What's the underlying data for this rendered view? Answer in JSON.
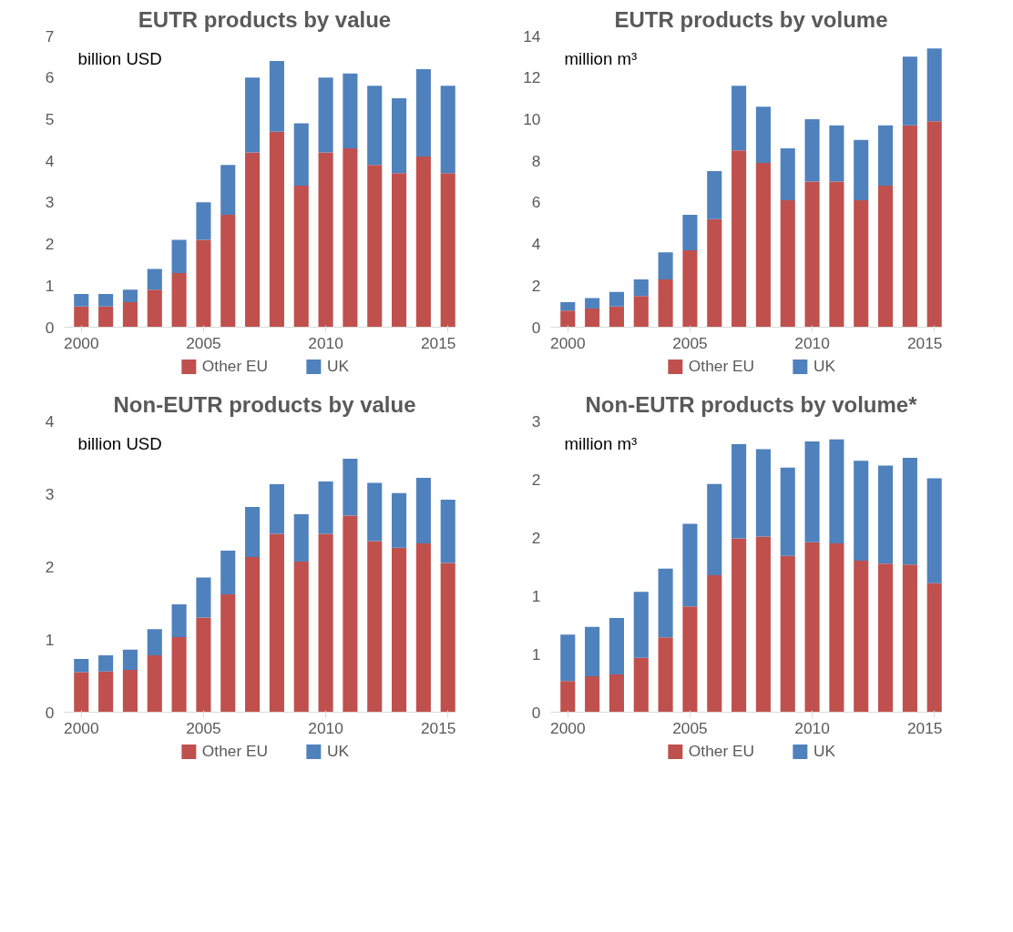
{
  "chart_data": [
    {
      "type": "bar",
      "stacked": true,
      "title": "EUTR products by value",
      "annotations": [
        "billion USD"
      ],
      "x": [
        2000,
        2001,
        2002,
        2003,
        2004,
        2005,
        2006,
        2007,
        2008,
        2009,
        2010,
        2011,
        2012,
        2013,
        2014,
        2015
      ],
      "xlim": [
        1999.3,
        2015.7
      ],
      "xticks": [
        2000,
        2005,
        2010,
        2015
      ],
      "ylim": [
        0,
        7
      ],
      "yticks": [
        0,
        1,
        2,
        3,
        4,
        5,
        6,
        7
      ],
      "grid": false,
      "legend": "bottom",
      "series": [
        {
          "name": "Other EU",
          "color": "#c0504d",
          "values": [
            0.5,
            0.5,
            0.6,
            0.9,
            1.3,
            2.1,
            2.7,
            4.2,
            4.7,
            3.4,
            4.2,
            4.3,
            3.9,
            3.7,
            4.1,
            3.7
          ]
        },
        {
          "name": "UK",
          "color": "#4f81bd",
          "values": [
            0.3,
            0.3,
            0.3,
            0.5,
            0.8,
            0.9,
            1.2,
            1.8,
            1.7,
            1.5,
            1.8,
            1.8,
            1.9,
            1.8,
            2.1,
            2.1
          ]
        }
      ]
    },
    {
      "type": "bar",
      "stacked": true,
      "title": "EUTR products by volume",
      "annotations": [
        "million m³"
      ],
      "x": [
        2000,
        2001,
        2002,
        2003,
        2004,
        2005,
        2006,
        2007,
        2008,
        2009,
        2010,
        2011,
        2012,
        2013,
        2014,
        2015
      ],
      "xlim": [
        1999.3,
        2015.7
      ],
      "xticks": [
        2000,
        2005,
        2010,
        2015
      ],
      "ylim": [
        0,
        14
      ],
      "yticks": [
        0,
        2,
        4,
        6,
        8,
        10,
        12,
        14
      ],
      "grid": false,
      "legend": "bottom",
      "series": [
        {
          "name": "Other EU",
          "color": "#c0504d",
          "values": [
            0.8,
            0.9,
            1.0,
            1.5,
            2.3,
            3.7,
            5.2,
            8.5,
            7.9,
            6.1,
            7.0,
            7.0,
            6.1,
            6.8,
            9.7,
            9.9
          ]
        },
        {
          "name": "UK",
          "color": "#4f81bd",
          "values": [
            0.4,
            0.5,
            0.7,
            0.8,
            1.3,
            1.7,
            2.3,
            3.1,
            2.7,
            2.5,
            3.0,
            2.7,
            2.9,
            2.9,
            3.3,
            3.5
          ]
        }
      ]
    },
    {
      "type": "bar",
      "stacked": true,
      "title": "Non-EUTR products by value",
      "annotations": [
        "billion USD"
      ],
      "x": [
        2000,
        2001,
        2002,
        2003,
        2004,
        2005,
        2006,
        2007,
        2008,
        2009,
        2010,
        2011,
        2012,
        2013,
        2014,
        2015
      ],
      "xlim": [
        1999.3,
        2015.7
      ],
      "xticks": [
        2000,
        2005,
        2010,
        2015
      ],
      "ylim": [
        0,
        4
      ],
      "yticks": [
        0,
        1,
        2,
        3,
        4
      ],
      "grid": false,
      "legend": "bottom",
      "series": [
        {
          "name": "Other EU",
          "color": "#c0504d",
          "values": [
            0.55,
            0.56,
            0.58,
            0.78,
            1.03,
            1.3,
            1.62,
            2.13,
            2.45,
            2.07,
            2.45,
            2.7,
            2.35,
            2.26,
            2.32,
            2.05
          ]
        },
        {
          "name": "UK",
          "color": "#4f81bd",
          "values": [
            0.18,
            0.22,
            0.28,
            0.36,
            0.45,
            0.55,
            0.6,
            0.69,
            0.68,
            0.65,
            0.72,
            0.78,
            0.8,
            0.75,
            0.9,
            0.87
          ]
        }
      ]
    },
    {
      "type": "bar",
      "stacked": true,
      "title": "Non-EUTR products by volume*",
      "annotations": [
        "million m³"
      ],
      "x": [
        2000,
        2001,
        2002,
        2003,
        2004,
        2005,
        2006,
        2007,
        2008,
        2009,
        2010,
        2011,
        2012,
        2013,
        2014,
        2015
      ],
      "xlim": [
        1999.3,
        2015.7
      ],
      "xticks": [
        2000,
        2005,
        2010,
        2015
      ],
      "ylim": [
        0,
        3
      ],
      "yticks": [
        0,
        {
          "value": 0.6,
          "label": "1"
        },
        {
          "value": 1.2,
          "label": "1"
        },
        {
          "value": 1.8,
          "label": "2"
        },
        {
          "value": 2.4,
          "label": "2"
        },
        3
      ],
      "grid": false,
      "legend": "bottom",
      "series": [
        {
          "name": "Other EU",
          "color": "#c0504d",
          "values": [
            0.32,
            0.37,
            0.39,
            0.56,
            0.77,
            1.09,
            1.41,
            1.79,
            1.81,
            1.61,
            1.75,
            1.74,
            1.56,
            1.53,
            1.52,
            1.33
          ]
        },
        {
          "name": "UK",
          "color": "#4f81bd",
          "values": [
            0.48,
            0.51,
            0.58,
            0.68,
            0.71,
            0.85,
            0.94,
            0.97,
            0.9,
            0.91,
            1.04,
            1.07,
            1.03,
            1.01,
            1.1,
            1.08
          ]
        }
      ]
    }
  ]
}
